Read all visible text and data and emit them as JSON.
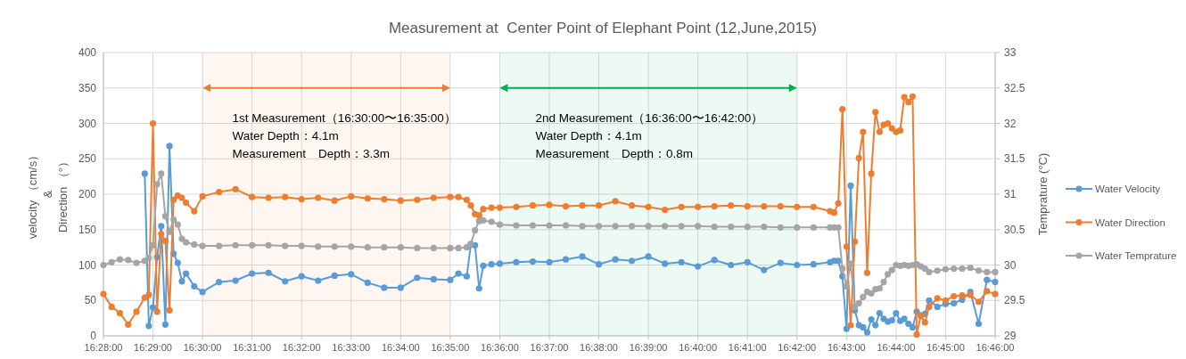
{
  "chart_data": {
    "type": "line",
    "title": "Measurement at  Center Point of Elephant Point (12,June,2015)",
    "ylabel": "velocity （cm/s）\n&\nDirection （°）",
    "y2label": "Temprature (°C)",
    "x": [
      16.46667,
      16.46944,
      16.47222,
      16.475,
      16.47778,
      16.48056,
      16.48194,
      16.48333,
      16.48472,
      16.48611,
      16.4875,
      16.48889,
      16.49028,
      16.49167,
      16.49306,
      16.49444,
      16.49722,
      16.5,
      16.50556,
      16.51111,
      16.51667,
      16.52222,
      16.52778,
      16.53333,
      16.53889,
      16.54444,
      16.55,
      16.55556,
      16.56111,
      16.56667,
      16.57222,
      16.57778,
      16.58333,
      16.58611,
      16.58889,
      16.59028,
      16.59167,
      16.59306,
      16.59444,
      16.59722,
      16.6,
      16.60556,
      16.61111,
      16.61667,
      16.62222,
      16.62778,
      16.63333,
      16.63889,
      16.64444,
      16.65,
      16.65556,
      16.66111,
      16.66667,
      16.67222,
      16.67778,
      16.68333,
      16.68889,
      16.69444,
      16.7,
      16.70556,
      16.71111,
      16.7125,
      16.71389,
      16.71528,
      16.71667,
      16.71806,
      16.71944,
      16.72083,
      16.72222,
      16.72361,
      16.725,
      16.72639,
      16.72778,
      16.72917,
      16.73056,
      16.73194,
      16.73333,
      16.73472,
      16.73611,
      16.7375,
      16.73889,
      16.74028,
      16.74167,
      16.74306,
      16.74444,
      16.74722,
      16.75,
      16.75278,
      16.75556,
      16.75833,
      16.76111,
      16.76389,
      16.76667
    ],
    "series": [
      {
        "name": "Water Velocity",
        "color": "#5b9bd5",
        "values": [
          null,
          null,
          null,
          null,
          null,
          229,
          14,
          40,
          111,
          155,
          16,
          268,
          116,
          103,
          77,
          88,
          70,
          62,
          76,
          78,
          88,
          89,
          77,
          84,
          78,
          85,
          87,
          75,
          68,
          68,
          82,
          80,
          79,
          88,
          84,
          129,
          128,
          67,
          99,
          101,
          102,
          104,
          105,
          104,
          108,
          112,
          101,
          108,
          106,
          112,
          102,
          104,
          98,
          107,
          100,
          104,
          93,
          103,
          100,
          101,
          104,
          106,
          106,
          84,
          10,
          212,
          36,
          15,
          12,
          5,
          23,
          15,
          32,
          24,
          20,
          22,
          32,
          21,
          24,
          17,
          12,
          34,
          28,
          31,
          50,
          41,
          45,
          46,
          51,
          62,
          17,
          79,
          76
        ]
      },
      {
        "name": "Water Direction",
        "color": "#ed7d31",
        "values": [
          59,
          41,
          32,
          16,
          34,
          54,
          58,
          300,
          34,
          144,
          134,
          36,
          192,
          198,
          195,
          188,
          176,
          197,
          203,
          207,
          196,
          195,
          196,
          193,
          195,
          191,
          197,
          194,
          193,
          191,
          192,
          195,
          196,
          196,
          192,
          184,
          172,
          170,
          179,
          181,
          181,
          182,
          184,
          185,
          183,
          184,
          184,
          190,
          184,
          182,
          178,
          182,
          182,
          183,
          184,
          183,
          183,
          183,
          182,
          182,
          176,
          174,
          187,
          320,
          126,
          15,
          133,
          251,
          288,
          89,
          229,
          316,
          288,
          298,
          300,
          293,
          288,
          290,
          337,
          330,
          338,
          2,
          29,
          19,
          41,
          53,
          50,
          56,
          57,
          58,
          48,
          63,
          59
        ]
      },
      {
        "name": "Water Temprature",
        "color": "#a5a5a5",
        "axis": "y2",
        "values": [
          30.0,
          30.04,
          30.08,
          30.07,
          30.03,
          30.06,
          30.1,
          30.28,
          31.14,
          31.29,
          30.69,
          30.47,
          30.64,
          30.57,
          30.37,
          30.32,
          30.29,
          30.27,
          30.27,
          30.28,
          30.28,
          30.28,
          30.27,
          30.27,
          30.26,
          30.26,
          30.26,
          30.25,
          30.25,
          30.25,
          30.24,
          30.24,
          30.24,
          30.24,
          30.25,
          30.3,
          30.49,
          30.62,
          30.63,
          30.61,
          30.57,
          30.56,
          30.56,
          30.56,
          30.56,
          30.55,
          30.55,
          30.55,
          30.55,
          30.55,
          30.55,
          30.55,
          30.55,
          30.54,
          30.54,
          30.54,
          30.54,
          30.53,
          30.53,
          30.53,
          30.53,
          30.53,
          30.53,
          29.95,
          29.7,
          30.02,
          29.41,
          29.46,
          29.55,
          29.62,
          29.6,
          29.66,
          29.67,
          29.76,
          29.87,
          29.93,
          30.0,
          29.99,
          30.0,
          29.99,
          30.0,
          30.01,
          29.98,
          29.95,
          29.9,
          29.92,
          29.94,
          29.95,
          29.95,
          29.96,
          29.92,
          29.9,
          29.9
        ]
      }
    ],
    "xlim": [
      16.46667,
      16.76667
    ],
    "xticks": [
      {
        "value": 16.46667,
        "label": "16:28:00"
      },
      {
        "value": 16.48333,
        "label": "16:29:00"
      },
      {
        "value": 16.5,
        "label": "16:30:00"
      },
      {
        "value": 16.51667,
        "label": "16:31:00"
      },
      {
        "value": 16.53333,
        "label": "16:32:00"
      },
      {
        "value": 16.55,
        "label": "16:33:00"
      },
      {
        "value": 16.56667,
        "label": "16:34:00"
      },
      {
        "value": 16.58333,
        "label": "16:35:00"
      },
      {
        "value": 16.6,
        "label": "16:36:00"
      },
      {
        "value": 16.61667,
        "label": "16:37:00"
      },
      {
        "value": 16.63333,
        "label": "16:38:00"
      },
      {
        "value": 16.65,
        "label": "16:39:00"
      },
      {
        "value": 16.66667,
        "label": "16:40:00"
      },
      {
        "value": 16.68333,
        "label": "16:41:00"
      },
      {
        "value": 16.7,
        "label": "16:42:00"
      },
      {
        "value": 16.71667,
        "label": "16:43:00"
      },
      {
        "value": 16.73333,
        "label": "16:44:00"
      },
      {
        "value": 16.75,
        "label": "16:45:00"
      },
      {
        "value": 16.76667,
        "label": "16:46:00"
      }
    ],
    "ylim": [
      0,
      400
    ],
    "yticks": [
      0,
      50,
      100,
      150,
      200,
      250,
      300,
      350,
      400
    ],
    "y2lim": [
      29,
      33
    ],
    "y2ticks": [
      29,
      29.5,
      30,
      30.5,
      31,
      31.5,
      32,
      32.5,
      33
    ],
    "bands": [
      {
        "axis": "x",
        "from": 16.5,
        "to": 16.58333,
        "color": "#ed7d31",
        "label": "1st Measurement（16:30:00〜16:35:00）\nWater Depth：4.1m\nMeasurement　Depth：3.3m"
      },
      {
        "axis": "x",
        "from": 16.6,
        "to": 16.7,
        "color": "#00b050",
        "label": "2nd Measurement（16:36:00〜16:42:00）\nWater Depth：4.1m\nMeasurement　Depth：0.8m"
      }
    ],
    "grid": true,
    "legend": "right",
    "marker": "circle",
    "line_style": "solid"
  }
}
